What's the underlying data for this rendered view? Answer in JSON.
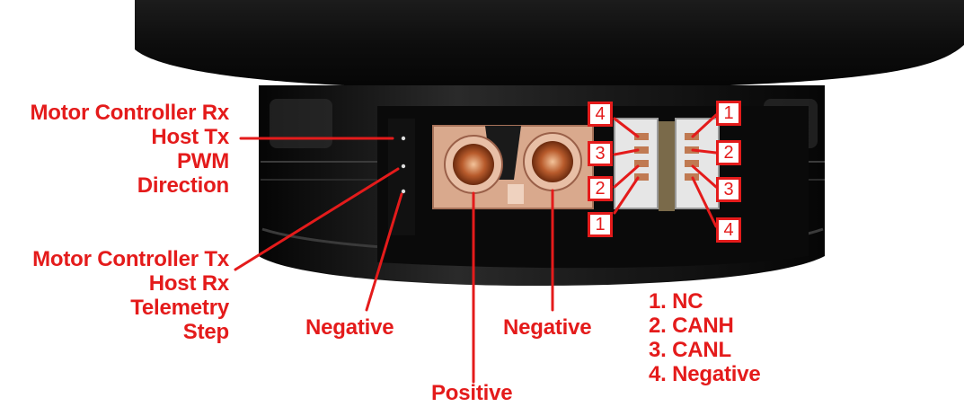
{
  "labels": {
    "left_top": [
      "Motor Controller Rx",
      "Host Tx",
      "PWM",
      "Direction"
    ],
    "left_bottom": [
      "Motor Controller Tx",
      "Host Rx",
      "Telemetry",
      "Step"
    ],
    "negative_left": "Negative",
    "negative_mid": "Negative",
    "positive": "Positive"
  },
  "can_legend": [
    "1. NC",
    "2. CANH",
    "3. CANL",
    "4. Negative"
  ],
  "pin_numbers": {
    "left_connector": [
      "4",
      "3",
      "2",
      "1"
    ],
    "right_connector": [
      "1",
      "2",
      "3",
      "4"
    ]
  },
  "colors": {
    "accent": "#e41b1b",
    "motor_body": "#141414",
    "connector_shell": "#d9a98d"
  }
}
